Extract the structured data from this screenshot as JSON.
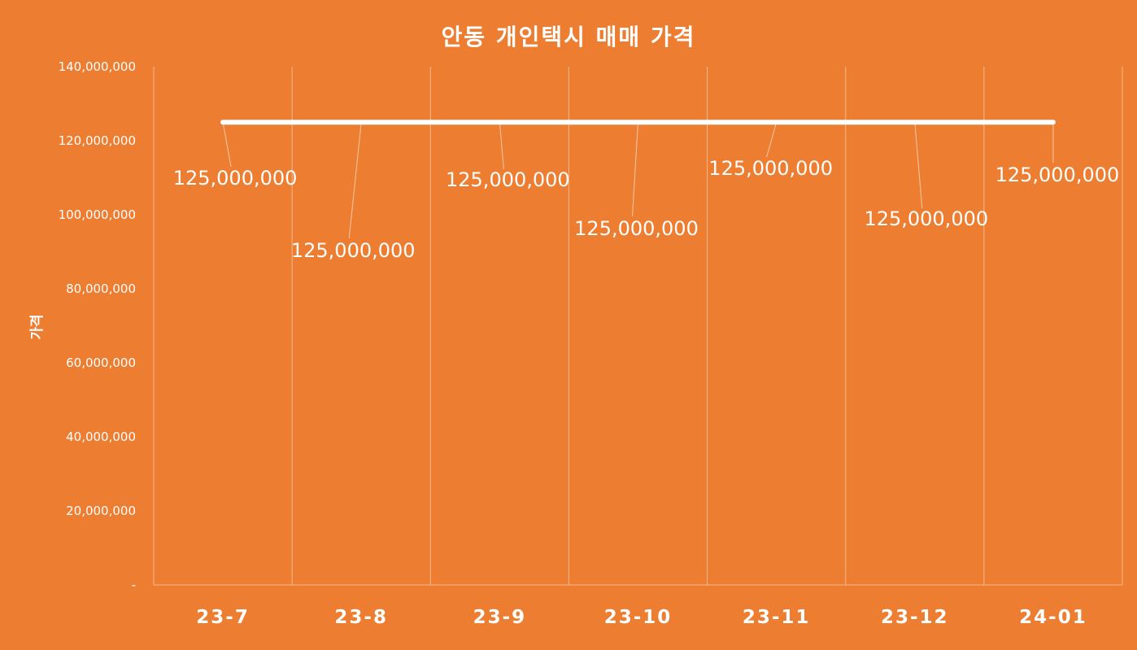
{
  "colors": {
    "background": "#ED7D31",
    "line": "#FFFFFF",
    "text": "#FFFFFF"
  },
  "chart_data": {
    "type": "line",
    "title": "안동 개인택시 매매 가격",
    "xlabel": "",
    "ylabel": "가격",
    "categories": [
      "23-7",
      "23-8",
      "23-9",
      "23-10",
      "23-11",
      "23-12",
      "24-01"
    ],
    "series": [
      {
        "values": [
          125000000,
          125000000,
          125000000,
          125000000,
          125000000,
          125000000,
          125000000
        ]
      }
    ],
    "data_labels": [
      "125,000,000",
      "125,000,000",
      "125,000,000",
      "125,000,000",
      "125,000,000",
      "125,000,000",
      "125,000,000"
    ],
    "ylim": [
      0,
      140000000
    ],
    "yticks": [
      0,
      20000000,
      40000000,
      60000000,
      80000000,
      100000000,
      120000000,
      140000000
    ],
    "ytick_labels": [
      "-",
      "20,000,000",
      "40,000,000",
      "60,000,000",
      "80,000,000",
      "100,000,000",
      "120,000,000",
      "140,000,000"
    ],
    "grid": "vertical",
    "legend": "none"
  }
}
